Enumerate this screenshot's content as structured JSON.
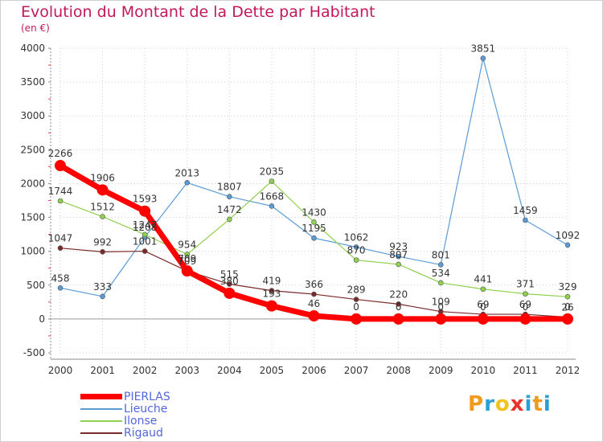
{
  "header": {
    "title": "Evolution du Montant de la Dette par Habitant",
    "unit": "(en €)"
  },
  "logo": {
    "text": "Proxiti",
    "letters": [
      "P",
      "r",
      "o",
      "x",
      "i",
      "t",
      "i"
    ],
    "colors": [
      "#f29a1e",
      "#2a9fd6",
      "#f2c21e",
      "#e8322b",
      "#2a9fd6",
      "#f29a1e",
      "#2a9fd6"
    ]
  },
  "chart_data": {
    "type": "line",
    "title": "Evolution du Montant de la Dette par Habitant",
    "ylabel": "(en €)",
    "xlabel": "",
    "ylim": [
      -500,
      4000
    ],
    "yticks": [
      -500,
      0,
      500,
      1000,
      1500,
      2000,
      2500,
      3000,
      3500,
      4000
    ],
    "categories": [
      "2000",
      "2001",
      "2002",
      "2003",
      "2004",
      "2005",
      "2006",
      "2007",
      "2008",
      "2009",
      "2010",
      "2011",
      "2012"
    ],
    "legend_position": "bottom-left",
    "series": [
      {
        "name": "PIERLAS",
        "color": "#ff0000",
        "width": 7,
        "marker": 7,
        "values": [
          2266,
          1906,
          1593,
          709,
          380,
          193,
          46,
          0,
          0,
          0,
          0,
          0,
          0
        ],
        "labels": [
          "2266",
          "1906",
          "1593",
          "709",
          "380",
          "193",
          "46",
          "0",
          "0",
          "0",
          "0",
          "0",
          "0"
        ]
      },
      {
        "name": "Lieuche",
        "color": "#5b9bd5",
        "width": 1.2,
        "marker": 3,
        "values": [
          458,
          333,
          1208,
          2013,
          1807,
          1668,
          1195,
          1062,
          923,
          801,
          3851,
          1459,
          1092
        ],
        "labels": [
          "458",
          "333",
          "1208",
          "2013",
          "1807",
          "1668",
          "1195",
          "1062",
          "923",
          "801",
          "3851",
          "1459",
          "1092"
        ]
      },
      {
        "name": "Ilonse",
        "color": "#8fd14f",
        "width": 1.2,
        "marker": 3,
        "values": [
          1744,
          1512,
          1247,
          954,
          1472,
          2035,
          1430,
          870,
          807,
          534,
          441,
          371,
          329
        ],
        "labels": [
          "1744",
          "1512",
          "1247",
          "954",
          "1472",
          "2035",
          "1430",
          "870",
          "807",
          "534",
          "441",
          "371",
          "329"
        ]
      },
      {
        "name": "Rigaud",
        "color": "#7a2a2a",
        "width": 1.2,
        "marker": 3,
        "values": [
          1047,
          992,
          1001,
          709,
          515,
          419,
          366,
          289,
          220,
          109,
          69,
          69,
          26
        ],
        "labels": [
          "1047",
          "992",
          "1001",
          "709",
          "515",
          "419",
          "366",
          "289",
          "220",
          "109",
          "69",
          "69",
          "26"
        ]
      }
    ]
  }
}
